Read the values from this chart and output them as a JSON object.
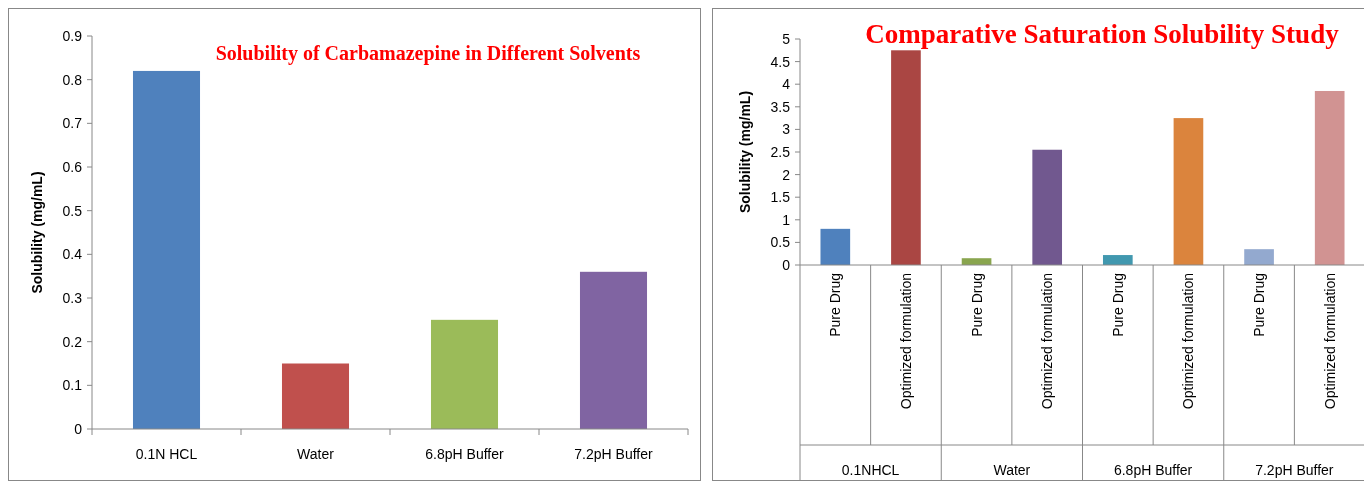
{
  "chart_data": [
    {
      "type": "bar",
      "title": "Solubility of Carbamazepine in Different Solvents",
      "ylabel": "Solubility (mg/mL)",
      "categories": [
        "0.1N HCL",
        "Water",
        "6.8pH Buffer",
        "7.2pH Buffer"
      ],
      "values": [
        0.82,
        0.15,
        0.25,
        0.36
      ],
      "colors": [
        "#4f81bd",
        "#c0504d",
        "#9bbb59",
        "#8064a2"
      ],
      "ylim": [
        0,
        0.9
      ],
      "yticks": [
        0,
        0.1,
        0.2,
        0.3,
        0.4,
        0.5,
        0.6,
        0.7,
        0.8,
        0.9
      ],
      "grid": false
    },
    {
      "type": "bar",
      "title": "Comparative Saturation Solubility Study",
      "ylabel": "Solubility (mg/mL)",
      "categories": [
        "Pure Drug",
        "Optimized formulation",
        "Pure Drug",
        "Optimized formulation",
        "Pure Drug",
        "Optimized formulation",
        "Pure Drug",
        "Optimized formulation"
      ],
      "values": [
        0.8,
        4.75,
        0.15,
        2.55,
        0.22,
        3.25,
        0.35,
        3.85
      ],
      "colors": [
        "#4f81bd",
        "#aa4643",
        "#89a54e",
        "#71588f",
        "#4198af",
        "#db843d",
        "#93a9cf",
        "#d19392"
      ],
      "ylim": [
        0,
        5
      ],
      "yticks": [
        0,
        0.5,
        1,
        1.5,
        2,
        2.5,
        3,
        3.5,
        4,
        4.5,
        5
      ],
      "grid": false,
      "annotations": [
        "0.1NHCL",
        "Water",
        "6.8pH Buffer",
        "7.2pH Buffer"
      ]
    }
  ]
}
